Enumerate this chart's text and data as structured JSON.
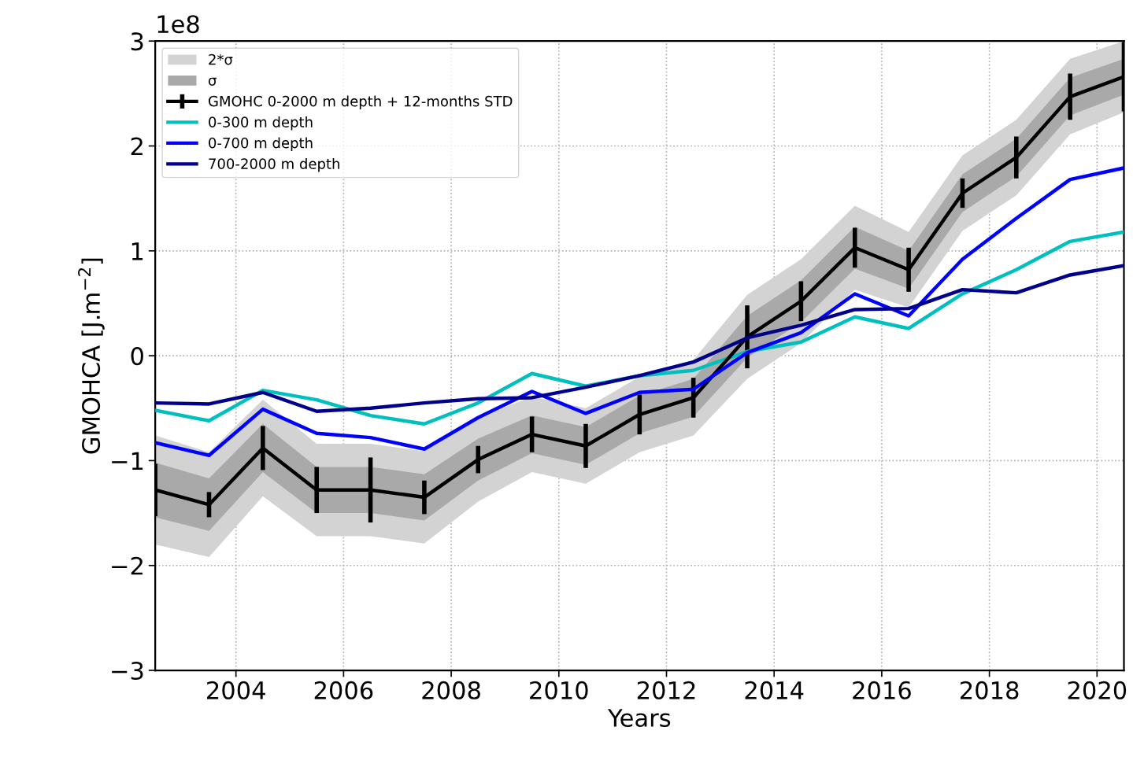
{
  "chart_data": {
    "type": "line",
    "xlabel": "Years",
    "ylabel": "GMOHCA [J.m$^{−2}$]",
    "annotations": [
      "1e8"
    ],
    "x": [
      2002.5,
      2003.5,
      2004.5,
      2005.5,
      2006.5,
      2007.5,
      2008.5,
      2009.5,
      2010.5,
      2011.5,
      2012.5,
      2013.5,
      2014.5,
      2015.5,
      2016.5,
      2017.5,
      2018.5,
      2019.5,
      2020.5
    ],
    "series": [
      {
        "name": "2*σ",
        "type": "area",
        "color": "#d3d3d3",
        "values": [
          null,
          null,
          null,
          null,
          null,
          null,
          null,
          null,
          null,
          null,
          null,
          null,
          null,
          null,
          null,
          null,
          null,
          null,
          null
        ],
        "lower": [
          -1.8,
          -1.92,
          -1.34,
          -1.72,
          -1.72,
          -1.79,
          -1.39,
          -1.11,
          -1.22,
          -0.92,
          -0.76,
          -0.22,
          0.12,
          0.63,
          0.46,
          1.19,
          1.53,
          2.11,
          2.32
        ],
        "upper": [
          -0.76,
          -0.92,
          -0.42,
          -0.84,
          -0.84,
          -0.91,
          -0.59,
          -0.39,
          -0.5,
          -0.2,
          -0.04,
          0.58,
          0.92,
          1.43,
          1.18,
          1.91,
          2.25,
          2.83,
          3.0
        ]
      },
      {
        "name": "σ",
        "type": "area",
        "color": "#a9a9a9",
        "values": [
          null,
          null,
          null,
          null,
          null,
          null,
          null,
          null,
          null,
          null,
          null,
          null,
          null,
          null,
          null,
          null,
          null,
          null,
          null
        ],
        "lower": [
          -1.54,
          -1.67,
          -1.11,
          -1.5,
          -1.5,
          -1.57,
          -1.19,
          -0.93,
          -1.04,
          -0.74,
          -0.58,
          -0.02,
          0.32,
          0.83,
          0.64,
          1.37,
          1.71,
          2.29,
          2.49
        ],
        "upper": [
          -1.02,
          -1.17,
          -0.65,
          -1.06,
          -1.06,
          -1.13,
          -0.79,
          -0.57,
          -0.68,
          -0.38,
          -0.22,
          0.38,
          0.72,
          1.23,
          1.0,
          1.73,
          2.07,
          2.65,
          2.83
        ]
      },
      {
        "name": "GMOHC 0-2000 m depth + 12-months STD",
        "color": "#000000",
        "values": [
          -1.28,
          -1.42,
          -0.88,
          -1.28,
          -1.28,
          -1.35,
          -0.99,
          -0.75,
          -0.86,
          -0.56,
          -0.4,
          0.18,
          0.52,
          1.03,
          0.82,
          1.55,
          1.89,
          2.47,
          2.66
        ],
        "errors": [
          0.25,
          0.12,
          0.21,
          0.22,
          0.31,
          0.16,
          0.13,
          0.17,
          0.21,
          0.19,
          0.19,
          0.3,
          0.19,
          0.19,
          0.21,
          0.14,
          0.2,
          0.22,
          0.33
        ]
      },
      {
        "name": "0-300 m depth",
        "color": "#00bfbf",
        "values": [
          -0.52,
          -0.62,
          -0.33,
          -0.42,
          -0.57,
          -0.65,
          -0.45,
          -0.17,
          -0.29,
          -0.19,
          -0.14,
          0.04,
          0.13,
          0.37,
          0.26,
          0.59,
          0.82,
          1.09,
          1.18
        ]
      },
      {
        "name": "0-700 m depth",
        "color": "#0000ff",
        "values": [
          -0.83,
          -0.95,
          -0.51,
          -0.74,
          -0.78,
          -0.89,
          -0.59,
          -0.34,
          -0.55,
          -0.35,
          -0.32,
          0.03,
          0.22,
          0.59,
          0.38,
          0.92,
          1.31,
          1.68,
          1.79
        ]
      },
      {
        "name": "700-2000 m depth",
        "color": "#00008b",
        "values": [
          -0.45,
          -0.46,
          -0.35,
          -0.53,
          -0.5,
          -0.45,
          -0.41,
          -0.4,
          -0.3,
          -0.19,
          -0.06,
          0.17,
          0.29,
          0.44,
          0.45,
          0.63,
          0.6,
          0.77,
          0.86
        ]
      }
    ],
    "xlim": [
      2002.5,
      2020.5
    ],
    "xticks": [
      2004,
      2006,
      2008,
      2010,
      2012,
      2014,
      2016,
      2018,
      2020
    ],
    "ylim": [
      -3,
      3
    ],
    "yticks": [
      {
        "value": -3,
        "label": "−3"
      },
      {
        "value": -2,
        "label": "−2"
      },
      {
        "value": -1,
        "label": "−1"
      },
      0,
      1,
      2,
      3
    ],
    "grid": true,
    "legend": "top left"
  }
}
